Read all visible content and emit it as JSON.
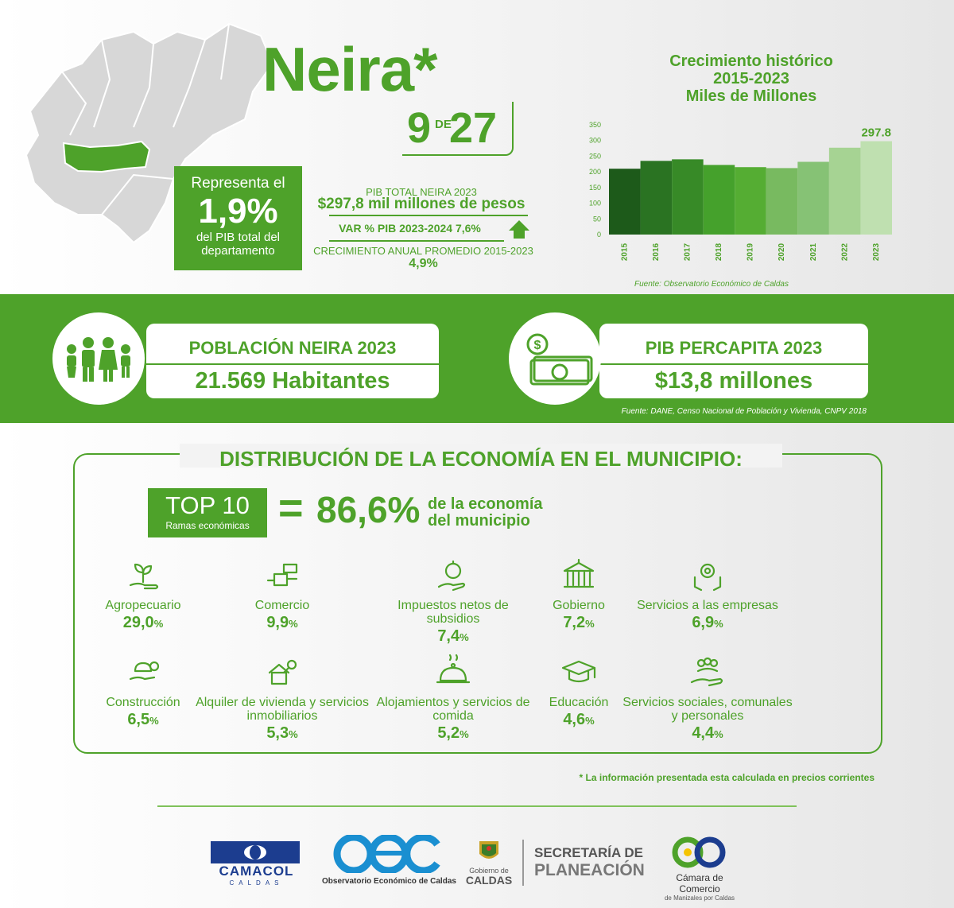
{
  "header": {
    "municipality": "Neira*",
    "rank": "9",
    "rank_sep": "DE",
    "rank_total": "27",
    "share": {
      "line1": "Representa el",
      "value": "1,9%",
      "line3": "del PIB total del",
      "line4": "departamento"
    },
    "pib": {
      "label": "PIB TOTAL NEIRA 2023",
      "value": "$297,8 mil millones de pesos",
      "var_label": "VAR % PIB 2023-2024",
      "var_value": "7,6%",
      "growth_label": "CRECIMIENTO ANUAL PROMEDIO 2015-2023",
      "growth_value": "4,9%"
    }
  },
  "chart": {
    "title_l1": "Crecimiento histórico",
    "title_l2": "2015-2023",
    "title_l3": "Miles de Millones",
    "source": "Fuente: Observatorio Económico de Caldas"
  },
  "chart_data": {
    "type": "bar",
    "title": "Crecimiento histórico 2015-2023 Miles de Millones",
    "categories": [
      "2015",
      "2016",
      "2017",
      "2018",
      "2019",
      "2020",
      "2021",
      "2022",
      "2023"
    ],
    "values": [
      210,
      235,
      240,
      222,
      215,
      212,
      232,
      277,
      297.8
    ],
    "ylim": [
      0,
      350
    ],
    "yticks": [
      "0",
      "50",
      "100",
      "150",
      "200",
      "250",
      "300",
      "350"
    ],
    "data_label": "297.8",
    "colors": [
      "#1d5a1a",
      "#2a7322",
      "#378a27",
      "#45a12c",
      "#55ad33",
      "#78ba60",
      "#86c275",
      "#a6d393",
      "#bfe0b0"
    ]
  },
  "band": {
    "population_title": "POBLACIÓN NEIRA 2023",
    "population_value": "21.569 Habitantes",
    "pib_pc_title": "PIB PERCAPITA 2023",
    "pib_pc_value": "$13,8 millones",
    "source": "Fuente: DANE, Censo Nacional de Población y Vivienda, CNPV 2018"
  },
  "distribution": {
    "title": "DISTRIBUCIÓN DE LA ECONOMÍA EN EL MUNICIPIO:",
    "top_label": "TOP 10",
    "top_sub": "Ramas económicas",
    "equals": "=",
    "top_pct": "86,6%",
    "top_text_l1": "de la economía",
    "top_text_l2": "del municipio",
    "sectors": [
      {
        "name": "Agropecuario",
        "value": "29,0",
        "icon": "plant-hand-icon"
      },
      {
        "name": "Comercio",
        "value": "9,9",
        "icon": "commerce-icon"
      },
      {
        "name": "Impuestos netos de subsidios",
        "value": "7,4",
        "icon": "coin-hand-icon"
      },
      {
        "name": "Gobierno",
        "value": "7,2",
        "icon": "government-building-icon"
      },
      {
        "name": "Servicios a las empresas",
        "value": "6,9",
        "icon": "business-services-icon"
      },
      {
        "name": "Construcción",
        "value": "6,5",
        "icon": "construction-icon"
      },
      {
        "name": "Alquiler de vivienda y servicios inmobiliarios",
        "value": "5,3",
        "icon": "house-key-icon"
      },
      {
        "name": "Alojamientos y servicios de comida",
        "value": "5,2",
        "icon": "food-cloche-icon"
      },
      {
        "name": "Educación",
        "value": "4,6",
        "icon": "graduation-cap-icon"
      },
      {
        "name": "Servicios sociales, comunales y personales",
        "value": "4,4",
        "icon": "community-hand-icon"
      }
    ],
    "pct_sign": "%",
    "note": "* La información presentada esta calculada en precios corrientes"
  },
  "logos": {
    "camacol": "CAMACOL",
    "camacol_sub": "CALDAS",
    "oec": "Observatorio Económico de Caldas",
    "gob_l1": "Gobierno de",
    "gob_l2": "CALDAS",
    "secre_l1": "SECRETARÍA DE",
    "secre_l2": "PLANEACIÓN",
    "ccm_l1": "Cámara de Comercio",
    "ccm_l2": "de Manizales por Caldas"
  },
  "colors": {
    "primary_green": "#4ea22a",
    "map_gray": "#d7d7d7",
    "neira_green": "#4ea22a"
  }
}
